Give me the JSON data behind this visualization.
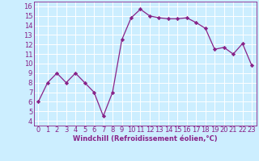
{
  "x": [
    0,
    1,
    2,
    3,
    4,
    5,
    6,
    7,
    8,
    9,
    10,
    11,
    12,
    13,
    14,
    15,
    16,
    17,
    18,
    19,
    20,
    21,
    22,
    23
  ],
  "y": [
    6.0,
    8.0,
    9.0,
    8.0,
    9.0,
    8.0,
    7.0,
    4.5,
    7.0,
    12.5,
    14.8,
    15.7,
    15.0,
    14.8,
    14.7,
    14.7,
    14.8,
    14.3,
    13.7,
    11.5,
    11.7,
    11.0,
    12.1,
    9.8
  ],
  "line_color": "#882288",
  "marker": "D",
  "marker_size": 2.2,
  "bg_color": "#cceeff",
  "grid_color": "#ffffff",
  "xlabel": "Windchill (Refroidissement éolien,°C)",
  "xlabel_fontsize": 6.0,
  "yticks": [
    4,
    5,
    6,
    7,
    8,
    9,
    10,
    11,
    12,
    13,
    14,
    15,
    16
  ],
  "xlim": [
    -0.5,
    23.5
  ],
  "ylim": [
    3.5,
    16.5
  ],
  "tick_fontsize": 6.0,
  "tick_color": "#882288",
  "linewidth": 0.9
}
